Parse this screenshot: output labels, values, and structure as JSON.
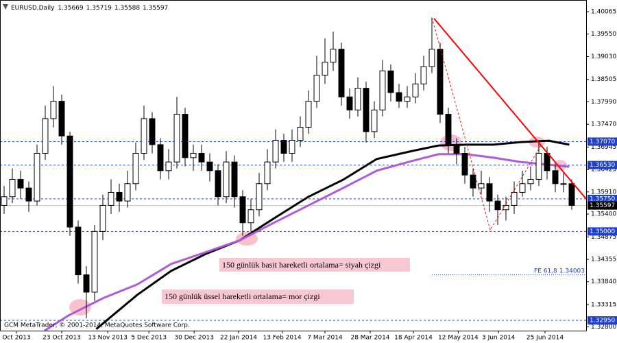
{
  "chart_data": {
    "type": "candlestick",
    "symbol": "EURUSD,Daily",
    "ohlc_header": [
      1.35669,
      1.35719,
      1.35588,
      1.35597
    ],
    "xlim": [
      -0.5,
      70.75
    ],
    "xticks": [
      {
        "value": 1.5,
        "label": "Oct 2013"
      },
      {
        "value": 7,
        "label": "23 Oct 2013"
      },
      {
        "value": 12.6,
        "label": "13 Nov 2013"
      },
      {
        "value": 17.6,
        "label": "5 Dec 2013"
      },
      {
        "value": 23.1,
        "label": "30 Dec 2013"
      },
      {
        "value": 28.5,
        "label": "22 Jan 2014"
      },
      {
        "value": 33.8,
        "label": "13 Feb 2014"
      },
      {
        "value": 39,
        "label": "7 Mar 2014"
      },
      {
        "value": 44.5,
        "label": "28 Mar 2014"
      },
      {
        "value": 49.75,
        "label": "18 Apr 2014"
      },
      {
        "value": 55.2,
        "label": "12 May 2014"
      },
      {
        "value": 60.1,
        "label": "3 Jun 2014"
      },
      {
        "value": 65.75,
        "label": "25 Jun 2014"
      }
    ],
    "ylim": [
      1.32713,
      1.40255
    ],
    "yticks": [
      1.40065,
      {
        "value": 1.3955,
        "label": "1.39550"
      },
      {
        "value": 1.3903,
        "label": "1.39030"
      },
      1.38505,
      {
        "value": 1.3799,
        "label": "1.37990"
      },
      {
        "value": 1.3747,
        "label": "1.37470"
      },
      1.36945,
      1.36425,
      {
        "value": 1.3591,
        "label": "1.35910"
      },
      {
        "value": 1.354,
        "label": "1.35400"
      },
      1.34875,
      1.34355,
      {
        "value": 1.3384,
        "label": "1.33840"
      },
      1.33315,
      {
        "value": 1.328,
        "label": "1.32800"
      }
    ],
    "open": [
      1.356,
      1.358,
      1.362,
      1.36,
      1.357,
      1.368,
      1.376,
      1.38,
      1.372,
      1.351,
      1.34,
      1.336,
      1.35,
      1.356,
      1.359,
      1.357,
      1.361,
      1.368,
      1.376,
      1.37,
      1.364,
      1.366,
      1.377,
      1.367,
      1.368,
      1.366,
      1.364,
      1.358,
      1.366,
      1.358,
      1.352,
      1.355,
      1.361,
      1.366,
      1.371,
      1.368,
      1.371,
      1.374,
      1.38,
      1.386,
      1.389,
      1.392,
      1.381,
      1.378,
      1.383,
      1.373,
      1.378,
      1.387,
      1.382,
      1.38,
      1.381,
      1.384,
      1.388,
      1.392,
      1.377,
      1.37,
      1.368,
      1.363,
      1.36,
      1.361,
      1.357,
      1.355,
      1.356,
      1.359,
      1.361,
      1.362,
      1.368,
      1.364,
      1.361,
      1.361
    ],
    "high": [
      1.3605,
      1.3645,
      1.364,
      1.3615,
      1.37,
      1.379,
      1.3835,
      1.3815,
      1.373,
      1.3525,
      1.342,
      1.3515,
      1.3585,
      1.362,
      1.361,
      1.364,
      1.3705,
      1.379,
      1.3775,
      1.3715,
      1.369,
      1.381,
      1.3785,
      1.37,
      1.37,
      1.368,
      1.3655,
      1.3685,
      1.3675,
      1.3595,
      1.3575,
      1.3635,
      1.369,
      1.3735,
      1.3725,
      1.3735,
      1.3765,
      1.3825,
      1.3905,
      1.3945,
      1.396,
      1.3935,
      1.383,
      1.3855,
      1.3845,
      1.38,
      1.3895,
      1.3885,
      1.384,
      1.3835,
      1.3865,
      1.3905,
      1.3993,
      1.3935,
      1.3785,
      1.3715,
      1.3695,
      1.3645,
      1.364,
      1.3625,
      1.3585,
      1.358,
      1.3615,
      1.364,
      1.365,
      1.371,
      1.3695,
      1.3655,
      1.3635,
      1.362
    ],
    "low": [
      1.354,
      1.3565,
      1.3575,
      1.3545,
      1.356,
      1.3665,
      1.374,
      1.37,
      1.349,
      1.338,
      1.33,
      1.334,
      1.348,
      1.354,
      1.3545,
      1.3555,
      1.3595,
      1.3665,
      1.368,
      1.362,
      1.362,
      1.3645,
      1.365,
      1.364,
      1.364,
      1.3615,
      1.356,
      1.3565,
      1.3555,
      1.349,
      1.35,
      1.3535,
      1.3595,
      1.3645,
      1.366,
      1.366,
      1.3695,
      1.3725,
      1.3785,
      1.384,
      1.387,
      1.379,
      1.376,
      1.3765,
      1.3705,
      1.3715,
      1.3765,
      1.38,
      1.3785,
      1.3785,
      1.3795,
      1.3825,
      1.3865,
      1.375,
      1.368,
      1.3655,
      1.361,
      1.358,
      1.3585,
      1.3545,
      1.3515,
      1.3525,
      1.354,
      1.358,
      1.3595,
      1.3605,
      1.362,
      1.359,
      1.359,
      1.355
    ],
    "close": [
      1.358,
      1.362,
      1.36,
      1.357,
      1.368,
      1.376,
      1.38,
      1.372,
      1.351,
      1.34,
      1.336,
      1.35,
      1.356,
      1.359,
      1.357,
      1.361,
      1.368,
      1.376,
      1.37,
      1.364,
      1.366,
      1.377,
      1.367,
      1.368,
      1.366,
      1.364,
      1.358,
      1.366,
      1.358,
      1.352,
      1.355,
      1.361,
      1.366,
      1.371,
      1.368,
      1.371,
      1.374,
      1.38,
      1.386,
      1.389,
      1.392,
      1.381,
      1.378,
      1.383,
      1.373,
      1.378,
      1.387,
      1.382,
      1.38,
      1.381,
      1.384,
      1.388,
      1.392,
      1.377,
      1.37,
      1.368,
      1.363,
      1.36,
      1.361,
      1.357,
      1.355,
      1.356,
      1.359,
      1.361,
      1.362,
      1.368,
      1.364,
      1.361,
      1.361,
      1.356
    ],
    "ma_lines": [
      {
        "color": "#000000",
        "x": [
          11.2,
          16.2,
          20.3,
          24.5,
          28.7,
          32.8,
          37,
          41.2,
          45.3,
          49.5,
          52.8,
          56.2,
          59.5,
          62.8,
          66.2,
          68.7
        ],
        "values": [
          1.3275,
          1.3354,
          1.3409,
          1.3448,
          1.348,
          1.353,
          1.358,
          1.3619,
          1.3667,
          1.3685,
          1.3698,
          1.37,
          1.37,
          1.3706,
          1.3709,
          1.37
        ]
      },
      {
        "color": "#b05ad8",
        "x": [
          4.9,
          7.8,
          12,
          16.2,
          20.3,
          24.5,
          28.7,
          32.8,
          37,
          41.2,
          45.3,
          49.5,
          52.8,
          56.2,
          59.5,
          62.8,
          66.2,
          68.7
        ],
        "values": [
          1.3271,
          1.3306,
          1.3346,
          1.3378,
          1.3425,
          1.3452,
          1.348,
          1.352,
          1.356,
          1.36,
          1.364,
          1.3662,
          1.3678,
          1.3678,
          1.367,
          1.366,
          1.3654,
          1.3649
        ]
      }
    ],
    "trendlines": [
      {
        "color": "#ff0000",
        "style": "solid",
        "x": [
          52.25,
          70.75
        ],
        "values": [
          1.3991,
          1.3575
        ]
      },
      {
        "color": "#ff0000",
        "style": "dotted",
        "x": [
          52,
          59.1,
          65.25
        ],
        "values": [
          1.3993,
          1.3503,
          1.3698
        ]
      }
    ],
    "levels": [
      {
        "value": 1.3707,
        "label": "1.37070"
      },
      {
        "value": 1.3653,
        "label": "1.36530"
      },
      {
        "value": 1.3575,
        "label": "1.35750"
      },
      {
        "value": 1.35,
        "label": "1.35000"
      },
      {
        "value": 1.3295,
        "label": "1.32950"
      }
    ],
    "level_color": "#1f3fcf",
    "last_price": 1.35597,
    "fe_level": {
      "text": "FE 61,8",
      "value": 1.34003,
      "label": "1.34003",
      "x_start": 52
    },
    "annotations": [
      "150 günlük basit hareketli ortalama= siyah çizgi",
      "150 günlük üssel hareketli ortalama= mor çizgi"
    ],
    "copyright": "GCM MetaTrader, © 2001-2014, MetaQuotes Software Corp."
  }
}
